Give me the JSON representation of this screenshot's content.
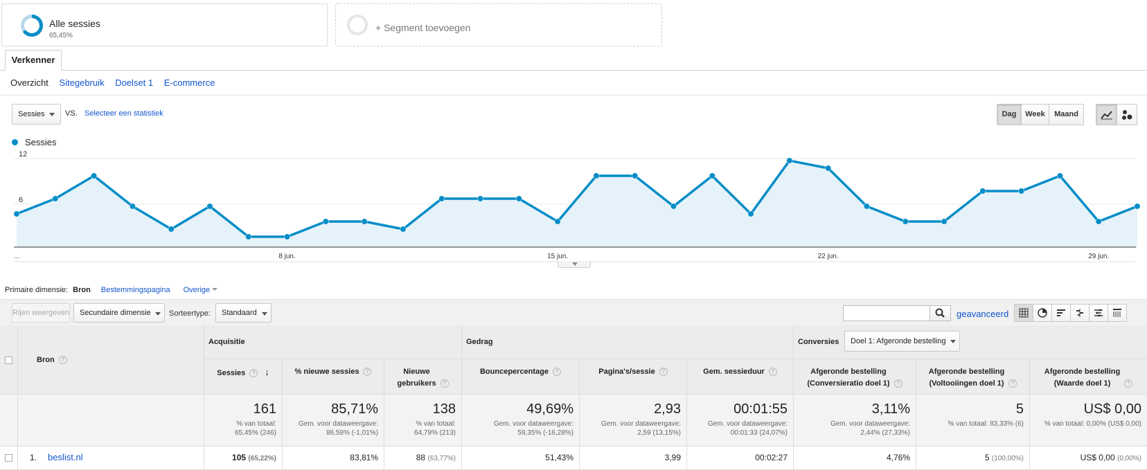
{
  "segments": {
    "all": {
      "title": "Alle sessies",
      "sub": "65,45%",
      "percent": 65.45
    },
    "add": {
      "label": "+ Segment toevoegen"
    }
  },
  "explorer": {
    "tab": "Verkenner",
    "subtabs": [
      "Overzicht",
      "Sitegebruik",
      "Doelset 1",
      "E-commerce"
    ]
  },
  "metric": {
    "selected": "Sessies",
    "vs": "VS.",
    "select_stat": "Selecteer een statistiek"
  },
  "period_buttons": [
    "Dag",
    "Week",
    "Maand"
  ],
  "period_active": "Dag",
  "chart_type_active": "line",
  "chart_data": {
    "type": "area",
    "series": [
      {
        "name": "Sessies",
        "color": "#058dc7",
        "values": [
          4,
          6,
          9,
          5,
          2,
          5,
          1,
          1,
          3,
          3,
          2,
          6,
          6,
          6,
          3,
          9,
          9,
          5,
          9,
          4,
          11,
          10,
          5,
          3,
          3,
          7,
          7,
          9,
          3,
          5
        ]
      }
    ],
    "ylim": [
      0,
      12
    ],
    "y_ticks": [
      6,
      12
    ],
    "x_tick_labels": [
      {
        "index": 0,
        "label": "..."
      },
      {
        "index": 7,
        "label": "8 jun."
      },
      {
        "index": 14,
        "label": "15 jun."
      },
      {
        "index": 21,
        "label": "22 jun."
      },
      {
        "index": 28,
        "label": "29 jun."
      }
    ],
    "grid": true,
    "legend": "top-left"
  },
  "primary_dimension": {
    "label": "Primaire dimensie:",
    "selected": "Bron",
    "options": [
      "Bestemmingspagina"
    ],
    "other": "Overige"
  },
  "toolbar": {
    "rows_button": "Rijen weergeven",
    "secondary_dimension": "Secundaire dimensie",
    "sort_label": "Sorteertype:",
    "sort_value": "Standaard",
    "search_value": "",
    "advanced": "geavanceerd"
  },
  "table": {
    "dimension_header": "Bron",
    "groups": {
      "acquisition": "Acquisitie",
      "behavior": "Gedrag",
      "conversions": "Conversies"
    },
    "goal_select": "Doel 1: Afgeronde bestelling",
    "columns": [
      {
        "title": "Sessies",
        "total": "161",
        "total_sub": "% van totaal:\n65,45% (246)"
      },
      {
        "title": "% nieuwe sessies",
        "total": "85,71%",
        "total_sub": "Gem. voor dataweergave:\n86,59% (-1,01%)"
      },
      {
        "title": "Nieuwe\ngebruikers",
        "total": "138",
        "total_sub": "% van totaal:\n64,79% (213)"
      },
      {
        "title": "Bouncepercentage",
        "total": "49,69%",
        "total_sub": "Gem. voor dataweergave:\n59,35% (-16,28%)"
      },
      {
        "title": "Pagina's/sessie",
        "total": "2,93",
        "total_sub": "Gem. voor dataweergave:\n2,59 (13,15%)"
      },
      {
        "title": "Gem. sessieduur",
        "total": "00:01:55",
        "total_sub": "Gem. voor dataweergave:\n00:01:33 (24,07%)"
      },
      {
        "title": "Afgeronde bestelling\n(Conversieratio doel 1)",
        "total": "3,11%",
        "total_sub": "Gem. voor dataweergave:\n2,44% (27,33%)"
      },
      {
        "title": "Afgeronde bestelling\n(Voltooiingen doel 1)",
        "total": "5",
        "total_sub": "% van totaal: 83,33% (6)"
      },
      {
        "title": "Afgeronde bestelling\n(Waarde doel 1)",
        "total": "US$ 0,00",
        "total_sub": "% van totaal: 0,00% (US$ 0,00)"
      }
    ],
    "rows": [
      {
        "index": "1.",
        "source": "beslist.nl",
        "values": [
          {
            "v": "105",
            "p": "(65,22%)"
          },
          {
            "v": "83,81%",
            "p": ""
          },
          {
            "v": "88",
            "p": "(63,77%)"
          },
          {
            "v": "51,43%",
            "p": ""
          },
          {
            "v": "3,99",
            "p": ""
          },
          {
            "v": "00:02:27",
            "p": ""
          },
          {
            "v": "4,76%",
            "p": ""
          },
          {
            "v": "5",
            "p": "(100,00%)"
          },
          {
            "v": "US$ 0,00",
            "p": "(0,00%)"
          }
        ]
      }
    ]
  }
}
